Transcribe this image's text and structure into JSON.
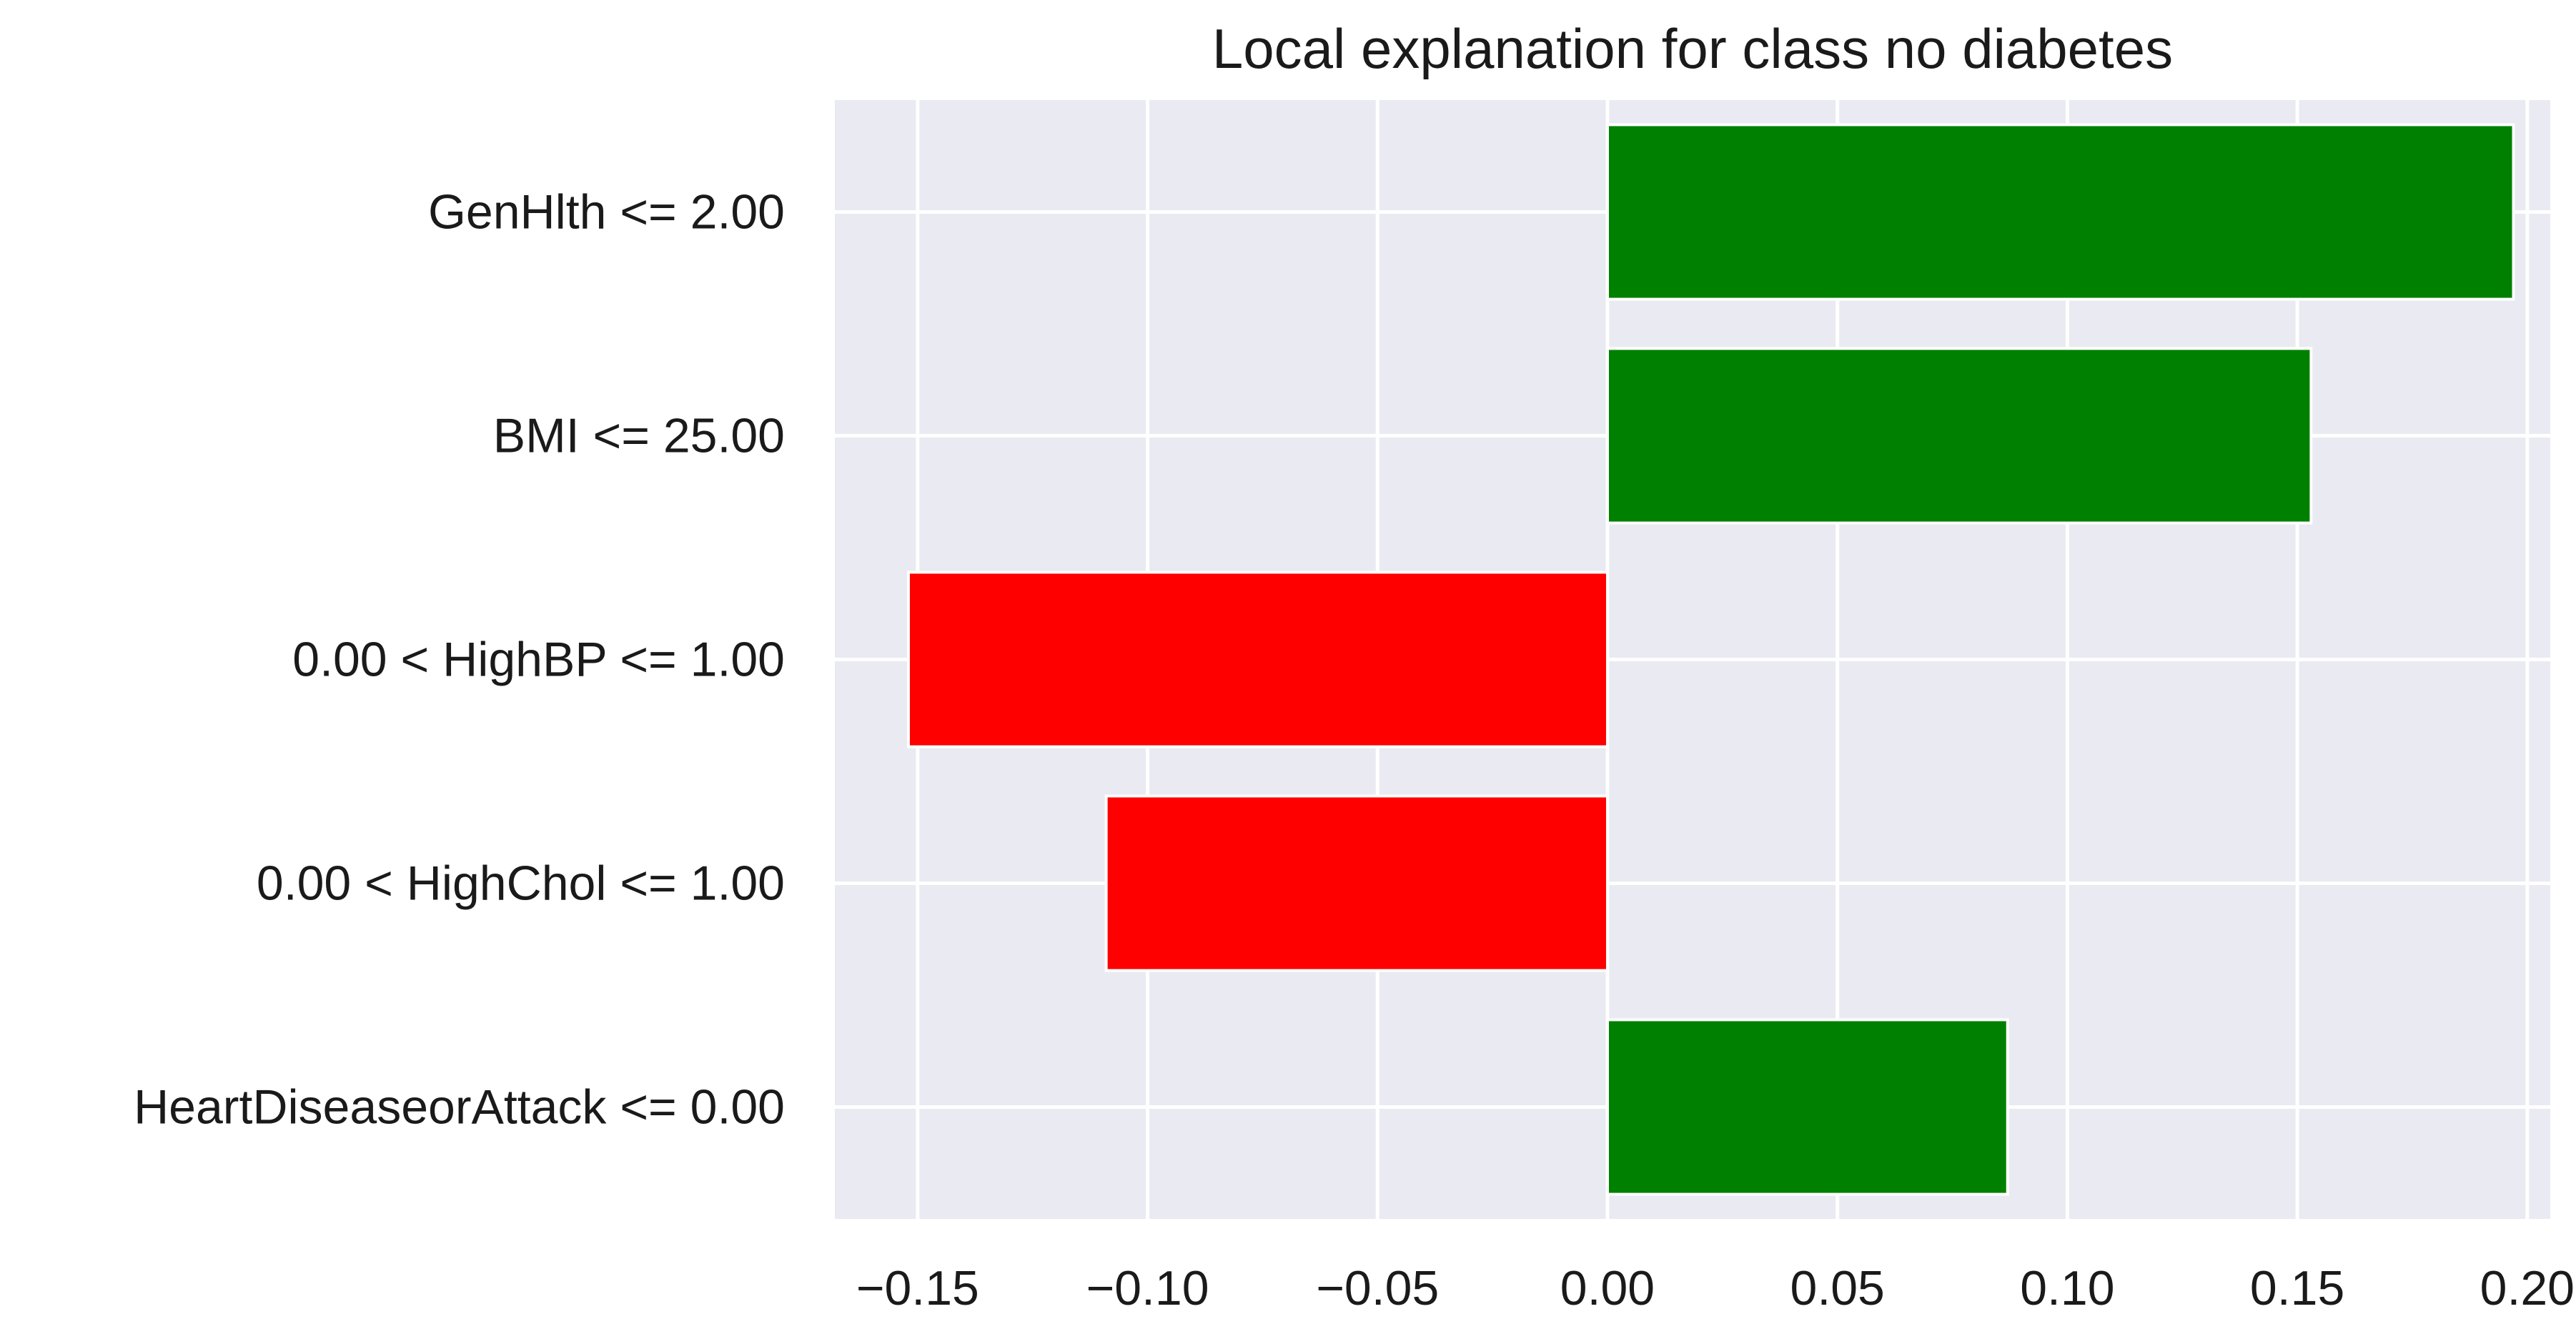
{
  "chart_data": {
    "type": "bar",
    "orientation": "horizontal",
    "title": "Local explanation for class no diabetes",
    "xlabel": "",
    "ylabel": "",
    "categories": [
      "GenHlth <= 2.00",
      "BMI <= 25.00",
      "0.00 < HighBP <= 1.00",
      "0.00 < HighChol <= 1.00",
      "HeartDiseaseorAttack <= 0.00"
    ],
    "values": [
      0.197,
      0.153,
      -0.152,
      -0.109,
      0.087
    ],
    "xlim": [
      -0.168,
      0.205
    ],
    "xticks": [
      -0.15,
      -0.1,
      -0.05,
      0.0,
      0.05,
      0.1,
      0.15,
      0.2
    ],
    "xtick_labels": [
      "−0.15",
      "−0.10",
      "−0.05",
      "0.00",
      "0.05",
      "0.10",
      "0.15",
      "0.20"
    ],
    "grid": true,
    "colors": {
      "positive": "#008000",
      "negative": "#ff0000",
      "background": "#eaeaf2",
      "grid": "#ffffff"
    }
  }
}
